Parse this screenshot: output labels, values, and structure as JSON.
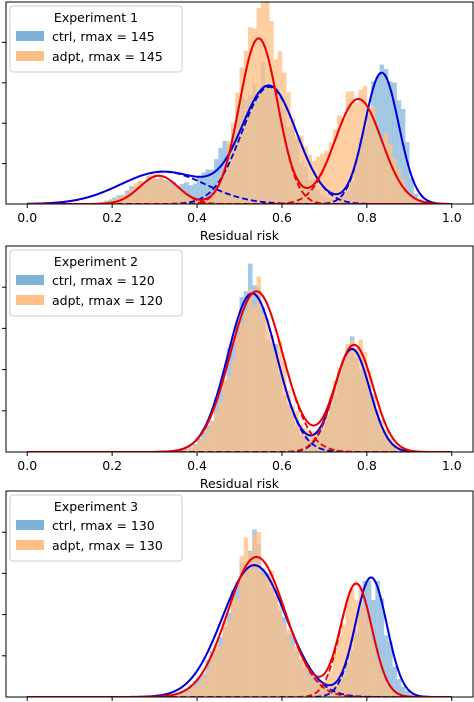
{
  "chart_data": [
    {
      "type": "histogram",
      "legend": {
        "title": "Experiment 1",
        "placement": "upper-left",
        "entries": [
          {
            "name": "ctrl, rmax = 145",
            "color": "#7fb2d9"
          },
          {
            "name": "adpt, rmax = 145",
            "color": "#ffbf86"
          }
        ]
      },
      "xlabel": "Residual risk",
      "xlim": [
        -0.05,
        1.05
      ],
      "xticks": [
        0.0,
        0.2,
        0.4,
        0.6,
        0.8,
        1.0
      ],
      "xtick_labels": [
        "0.0",
        "0.2",
        "0.4",
        "0.6",
        "0.8",
        "1.0"
      ],
      "yticks_unlabeled": [
        0.2,
        0.4,
        0.6,
        0.8
      ],
      "ylim": [
        0,
        1.0
      ],
      "series_hist": [
        {
          "name": "ctrl",
          "color": "#7fb2d9",
          "components": [
            [
              0.3,
              0.055,
              0.13
            ],
            [
              0.45,
              0.05,
              0.12
            ],
            [
              0.56,
              0.06,
              0.62
            ],
            [
              0.83,
              0.035,
              0.66
            ],
            [
              0.88,
              0.015,
              0.3
            ]
          ]
        },
        {
          "name": "adpt",
          "color": "#ffbf86",
          "components": [
            [
              0.3,
              0.05,
              0.14
            ],
            [
              0.54,
              0.042,
              0.78
            ],
            [
              0.6,
              0.06,
              0.35
            ],
            [
              0.78,
              0.05,
              0.55
            ],
            [
              0.86,
              0.02,
              0.1
            ]
          ]
        }
      ],
      "fits": [
        {
          "name": "ctrl fit",
          "color": "#0000dd",
          "components": [
            [
              0.32,
              0.1,
              0.16
            ],
            [
              0.57,
              0.065,
              0.58
            ],
            [
              0.835,
              0.04,
              0.65
            ]
          ]
        },
        {
          "name": "adpt fit",
          "color": "#ee0000",
          "components": [
            [
              0.31,
              0.045,
              0.14
            ],
            [
              0.545,
              0.045,
              0.82
            ],
            [
              0.78,
              0.055,
              0.52
            ]
          ]
        }
      ]
    },
    {
      "type": "histogram",
      "legend": {
        "title": "Experiment 2",
        "placement": "upper-left",
        "entries": [
          {
            "name": "ctrl, rmax = 120",
            "color": "#7fb2d9"
          },
          {
            "name": "adpt, rmax = 120",
            "color": "#ffbf86"
          }
        ]
      },
      "xlabel": "Residual risk",
      "xlim": [
        -0.05,
        1.05
      ],
      "xticks": [
        0.0,
        0.2,
        0.4,
        0.6,
        0.8,
        1.0
      ],
      "xtick_labels": [
        "0.0",
        "0.2",
        "0.4",
        "0.6",
        "0.8",
        "1.0"
      ],
      "yticks_unlabeled": [
        0.2,
        0.4,
        0.6,
        0.8
      ],
      "ylim": [
        0,
        1.0
      ],
      "series_hist": [
        {
          "name": "ctrl",
          "color": "#7fb2d9",
          "components": [
            [
              0.53,
              0.055,
              0.76
            ],
            [
              0.765,
              0.04,
              0.52
            ],
            [
              0.52,
              0.02,
              0.16
            ]
          ]
        },
        {
          "name": "adpt",
          "color": "#ffbf86",
          "components": [
            [
              0.54,
              0.058,
              0.76
            ],
            [
              0.77,
              0.042,
              0.53
            ]
          ]
        }
      ],
      "fits": [
        {
          "name": "ctrl fit",
          "color": "#0000dd",
          "components": [
            [
              0.53,
              0.058,
              0.77
            ],
            [
              0.765,
              0.042,
              0.5
            ]
          ]
        },
        {
          "name": "adpt fit",
          "color": "#ee0000",
          "components": [
            [
              0.54,
              0.062,
              0.78
            ],
            [
              0.77,
              0.045,
              0.52
            ]
          ]
        }
      ]
    },
    {
      "type": "histogram",
      "legend": {
        "title": "Experiment 3",
        "placement": "upper-left",
        "entries": [
          {
            "name": "ctrl, rmax = 130",
            "color": "#7fb2d9"
          },
          {
            "name": "adpt, rmax = 130",
            "color": "#ffbf86"
          }
        ]
      },
      "xlabel": "",
      "xlim": [
        -0.05,
        1.05
      ],
      "xticks": [
        0.0,
        0.2,
        0.4,
        0.6,
        0.8,
        1.0
      ],
      "xtick_labels": [],
      "yticks_unlabeled": [
        0.2,
        0.4,
        0.6,
        0.8
      ],
      "ylim": [
        0,
        1.0
      ],
      "series_hist": [
        {
          "name": "ctrl",
          "color": "#7fb2d9",
          "components": [
            [
              0.54,
              0.07,
              0.62
            ],
            [
              0.81,
              0.035,
              0.55
            ],
            [
              0.53,
              0.02,
              0.18
            ]
          ]
        },
        {
          "name": "adpt",
          "color": "#ffbf86",
          "components": [
            [
              0.54,
              0.065,
              0.66
            ],
            [
              0.775,
              0.035,
              0.52
            ],
            [
              0.53,
              0.015,
              0.15
            ]
          ]
        }
      ],
      "fits": [
        {
          "name": "ctrl fit",
          "color": "#0000dd",
          "components": [
            [
              0.535,
              0.075,
              0.64
            ],
            [
              0.81,
              0.037,
              0.58
            ]
          ]
        },
        {
          "name": "adpt fit",
          "color": "#ee0000",
          "components": [
            [
              0.54,
              0.068,
              0.68
            ],
            [
              0.775,
              0.037,
              0.55
            ]
          ]
        }
      ]
    }
  ]
}
